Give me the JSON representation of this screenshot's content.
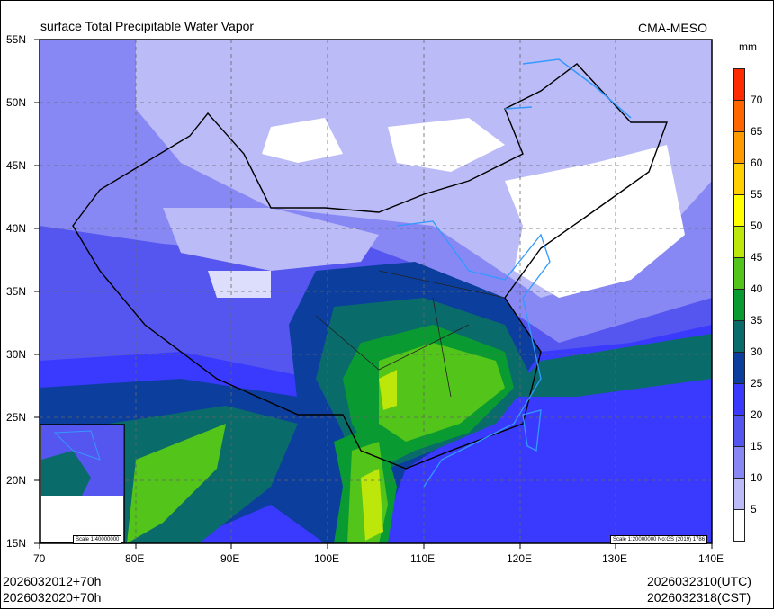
{
  "title": "surface Total Precipitable Water Vapor",
  "source": "CMA-MESO",
  "unit": "mm",
  "colorbar": {
    "labels": [
      "70",
      "65",
      "60",
      "55",
      "50",
      "45",
      "40",
      "35",
      "30",
      "25",
      "20",
      "15",
      "10",
      "5"
    ],
    "colors": [
      "#ff2a00",
      "#ff6600",
      "#ff9a00",
      "#ffcf00",
      "#ffff00",
      "#bde60a",
      "#52c41a",
      "#0a9a32",
      "#0a6b6b",
      "#0c3e9e",
      "#3a3aff",
      "#5555f0",
      "#8888f5",
      "#bbbbf7",
      "#ffffff"
    ]
  },
  "lat_labels": [
    "55N",
    "50N",
    "45N",
    "40N",
    "35N",
    "30N",
    "25N",
    "20N",
    "15N"
  ],
  "lon_labels": [
    "70",
    "80E",
    "90E",
    "100E",
    "110E",
    "120E",
    "130E",
    "140E"
  ],
  "inset_scale": "Scale 1:40000000",
  "main_scale": "Scale 1:20000000 No:GS (2019) 1786",
  "init_utc": "2026032012+70h",
  "init_cst": "2026032020+70h",
  "valid_utc": "2026032310(UTC)",
  "valid_cst": "2026032318(CST)"
}
